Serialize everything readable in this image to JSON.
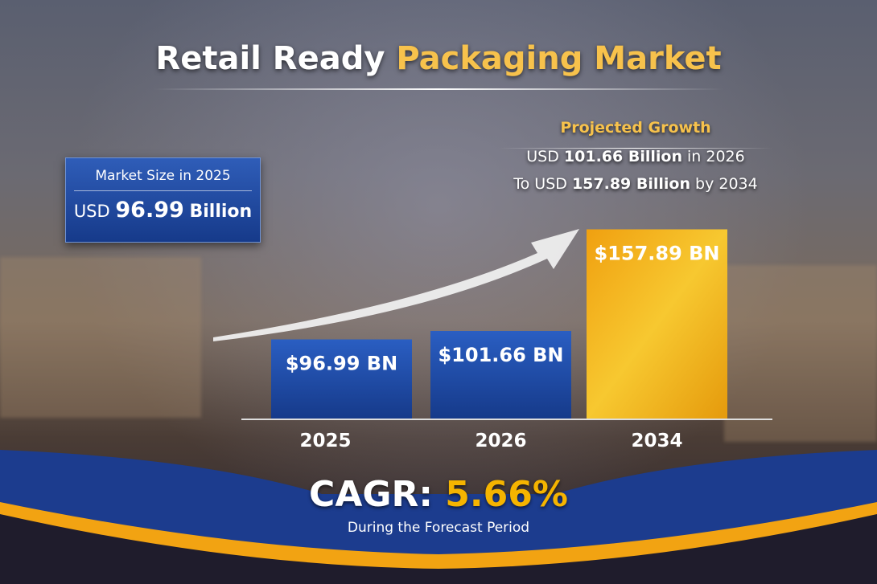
{
  "title": {
    "part1": "Retail Ready",
    "part2": "Packaging Market"
  },
  "market_size": {
    "label": "Market Size in 2025",
    "prefix": "USD",
    "value": "96.99",
    "unit": "Billion"
  },
  "projected": {
    "heading": "Projected Growth",
    "line1": {
      "prefix": "USD",
      "value": "101.66 Billion",
      "suffix": "in 2026"
    },
    "line2": {
      "prefix": "To USD",
      "value": "157.89 Billion",
      "suffix": "by 2034"
    }
  },
  "cagr": {
    "label": "CAGR:",
    "value": "5.66%",
    "subtitle": "During the Forecast Period"
  },
  "colors": {
    "blue": "#1e4aa8",
    "gold": "#f0a812",
    "accent": "#f7c24c"
  },
  "chart_data": {
    "type": "bar",
    "categories": [
      "2025",
      "2026",
      "2034"
    ],
    "values": [
      96.99,
      101.66,
      157.89
    ],
    "data_labels": [
      "$96.99 BN",
      "$101.66 BN",
      "$157.89 BN"
    ],
    "unit": "USD Billion",
    "bar_colors": [
      "#1e4aa8",
      "#1e4aa8",
      "#f0a812"
    ],
    "grid": false,
    "trend_arrow": true
  }
}
